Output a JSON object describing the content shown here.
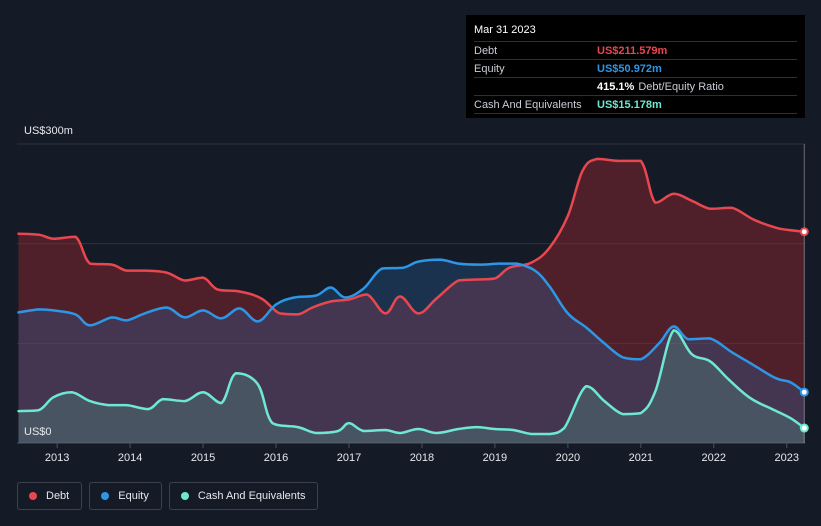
{
  "tooltip": {
    "date": "Mar 31 2023",
    "debt_label": "Debt",
    "debt_value": "US$211.579m",
    "equity_label": "Equity",
    "equity_value": "US$50.972m",
    "ratio_value": "415.1%",
    "ratio_label": "Debt/Equity Ratio",
    "cash_label": "Cash And Equivalents",
    "cash_value": "US$15.178m"
  },
  "legend": {
    "debt": "Debt",
    "equity": "Equity",
    "cash": "Cash And Equivalents"
  },
  "colors": {
    "debt": "#e8474f",
    "equity": "#2d96e6",
    "cash": "#6ee8d2",
    "background": "#151b26",
    "future_shade": "#1b212d"
  },
  "chart_data": {
    "type": "area",
    "title": "",
    "xlabel": "",
    "ylabel": "",
    "y_top_label": "US$300m",
    "y_bottom_label": "US$0",
    "ylim": [
      0,
      300
    ],
    "xlim": [
      2012.45,
      2023.25
    ],
    "x_ticks": [
      {
        "value": 2013,
        "label": "2013"
      },
      {
        "value": 2014,
        "label": "2014"
      },
      {
        "value": 2015,
        "label": "2015"
      },
      {
        "value": 2016,
        "label": "2016"
      },
      {
        "value": 2017,
        "label": "2017"
      },
      {
        "value": 2018,
        "label": "2018"
      },
      {
        "value": 2019,
        "label": "2019"
      },
      {
        "value": 2020,
        "label": "2020"
      },
      {
        "value": 2021,
        "label": "2021"
      },
      {
        "value": 2022,
        "label": "2022"
      },
      {
        "value": 2023,
        "label": "2023"
      }
    ],
    "series": [
      {
        "name": "Debt",
        "x": [
          2012.47,
          2012.75,
          2012.95,
          2013.25,
          2013.45,
          2013.75,
          2013.95,
          2014.2,
          2014.5,
          2014.75,
          2015.0,
          2015.2,
          2015.5,
          2015.8,
          2016.05,
          2016.3,
          2016.5,
          2016.75,
          2017.0,
          2017.25,
          2017.5,
          2017.7,
          2017.95,
          2018.2,
          2018.5,
          2018.75,
          2019.0,
          2019.2,
          2019.5,
          2019.75,
          2020.0,
          2020.2,
          2020.4,
          2020.7,
          2021.0,
          2021.2,
          2021.45,
          2021.7,
          2021.95,
          2022.25,
          2022.55,
          2022.85,
          2023.0,
          2023.24
        ],
        "values": [
          210,
          209,
          205,
          207,
          180,
          179,
          173,
          173,
          171,
          163,
          166,
          154,
          152,
          145,
          130,
          129,
          136,
          142,
          144,
          149,
          130,
          147,
          130,
          145,
          163,
          164,
          165,
          176,
          181,
          196,
          228,
          273,
          285,
          283,
          283,
          241,
          250,
          243,
          235,
          236,
          224,
          216,
          214,
          212
        ]
      },
      {
        "name": "Equity",
        "x": [
          2012.47,
          2012.75,
          2012.95,
          2013.25,
          2013.45,
          2013.75,
          2013.95,
          2014.2,
          2014.5,
          2014.75,
          2015.0,
          2015.25,
          2015.5,
          2015.75,
          2016.0,
          2016.25,
          2016.55,
          2016.75,
          2016.95,
          2017.2,
          2017.45,
          2017.75,
          2017.95,
          2018.25,
          2018.5,
          2018.8,
          2019.05,
          2019.3,
          2019.55,
          2019.75,
          2020.0,
          2020.25,
          2020.5,
          2020.75,
          2021.0,
          2021.25,
          2021.45,
          2021.65,
          2021.95,
          2022.25,
          2022.55,
          2022.85,
          2023.05,
          2023.24
        ],
        "values": [
          131,
          134,
          133,
          129,
          118,
          126,
          123,
          130,
          136,
          126,
          133,
          125,
          135,
          122,
          139,
          146,
          148,
          156,
          146,
          155,
          175,
          176,
          182,
          184,
          180,
          179,
          180,
          180,
          173,
          157,
          130,
          116,
          100,
          86,
          84,
          100,
          117,
          104,
          105,
          91,
          78,
          65,
          61,
          51
        ]
      },
      {
        "name": "Cash And Equivalents",
        "x": [
          2012.47,
          2012.75,
          2012.95,
          2013.2,
          2013.45,
          2013.7,
          2013.95,
          2014.25,
          2014.45,
          2014.75,
          2015.0,
          2015.25,
          2015.45,
          2015.75,
          2015.95,
          2016.3,
          2016.55,
          2016.85,
          2017.0,
          2017.2,
          2017.5,
          2017.7,
          2017.95,
          2018.2,
          2018.5,
          2018.75,
          2019.0,
          2019.25,
          2019.5,
          2019.75,
          2019.95,
          2020.25,
          2020.5,
          2020.75,
          2021.0,
          2021.2,
          2021.45,
          2021.7,
          2021.95,
          2022.2,
          2022.5,
          2022.8,
          2023.05,
          2023.24
        ],
        "values": [
          32,
          33,
          46,
          51,
          42,
          38,
          38,
          34,
          44,
          42,
          51,
          40,
          70,
          59,
          20,
          16,
          10,
          12,
          20,
          12,
          13,
          10,
          14,
          10,
          14,
          16,
          14,
          13,
          9,
          9,
          15,
          57,
          42,
          29,
          30,
          52,
          113,
          89,
          82,
          64,
          45,
          34,
          25,
          15
        ]
      }
    ]
  }
}
